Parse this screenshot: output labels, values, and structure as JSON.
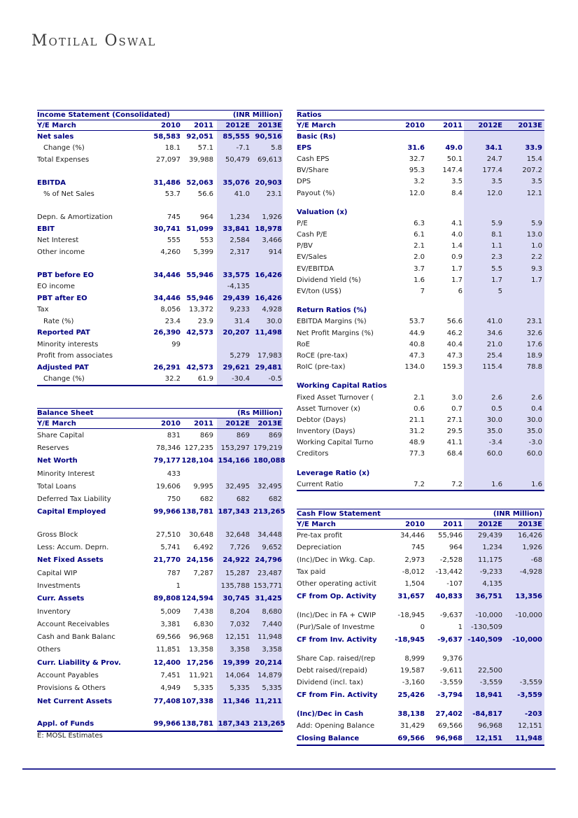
{
  "page": {
    "brand": "Motilal Oswal",
    "footnote": "E: MOSL Estimates"
  },
  "theme": {
    "navy": "#000080",
    "column_shade": "#dcdcf5",
    "footer_rule": "#2b2b96",
    "text": "#1a1a1a"
  },
  "tables": {
    "income": {
      "title": "Income Statement (Consolidated)",
      "unit": "(INR Million)",
      "header": [
        "Y/E March",
        "2010",
        "2011",
        "2012E",
        "2013E"
      ],
      "rows": [
        {
          "label": "Net sales",
          "values": [
            "58,583",
            "92,051",
            "85,555",
            "90,516"
          ],
          "style": "em"
        },
        {
          "label": "Change (%)",
          "values": [
            "18.1",
            "57.1",
            "-7.1",
            "5.8"
          ],
          "indent": true
        },
        {
          "label": "Total Expenses",
          "values": [
            "27,097",
            "39,988",
            "50,479",
            "69,613"
          ]
        },
        {
          "label": "",
          "values": [
            "",
            "",
            "",
            ""
          ],
          "blank": true
        },
        {
          "label": "EBITDA",
          "values": [
            "31,486",
            "52,063",
            "35,076",
            "20,903"
          ],
          "style": "em"
        },
        {
          "label": "% of Net Sales",
          "values": [
            "53.7",
            "56.6",
            "41.0",
            "23.1"
          ],
          "indent": true
        },
        {
          "label": "",
          "values": [
            "",
            "",
            "",
            ""
          ],
          "blank": true
        },
        {
          "label": "Depn. & Amortization",
          "values": [
            "745",
            "964",
            "1,234",
            "1,926"
          ]
        },
        {
          "label": "EBIT",
          "values": [
            "30,741",
            "51,099",
            "33,841",
            "18,978"
          ],
          "style": "em"
        },
        {
          "label": "Net Interest",
          "values": [
            "555",
            "553",
            "2,584",
            "3,466"
          ]
        },
        {
          "label": "Other income",
          "values": [
            "4,260",
            "5,399",
            "2,317",
            "914"
          ]
        },
        {
          "label": "",
          "values": [
            "",
            "",
            "",
            ""
          ],
          "blank": true
        },
        {
          "label": "PBT before EO",
          "values": [
            "34,446",
            "55,946",
            "33,575",
            "16,426"
          ],
          "style": "em"
        },
        {
          "label": "EO income",
          "values": [
            "",
            "",
            "-4,135",
            ""
          ]
        },
        {
          "label": "PBT after EO",
          "values": [
            "34,446",
            "55,946",
            "29,439",
            "16,426"
          ],
          "style": "em"
        },
        {
          "label": "Tax",
          "values": [
            "8,056",
            "13,372",
            "9,233",
            "4,928"
          ]
        },
        {
          "label": "Rate (%)",
          "values": [
            "23.4",
            "23.9",
            "31.4",
            "30.0"
          ],
          "indent": true
        },
        {
          "label": "Reported PAT",
          "values": [
            "26,390",
            "42,573",
            "20,207",
            "11,498"
          ],
          "style": "em"
        },
        {
          "label": "Minority interests",
          "values": [
            "99",
            "",
            "",
            ""
          ]
        },
        {
          "label": "Profit from associates",
          "values": [
            "",
            "",
            "5,279",
            "17,983"
          ]
        },
        {
          "label": "Adjusted PAT",
          "values": [
            "26,291",
            "42,573",
            "29,621",
            "29,481"
          ],
          "style": "em"
        },
        {
          "label": "Change (%)",
          "values": [
            "32.2",
            "61.9",
            "-30.4",
            "-0.5"
          ],
          "indent": true
        }
      ]
    },
    "balance": {
      "title": "Balance Sheet",
      "unit": "(Rs Million)",
      "header": [
        "Y/E March",
        "2010",
        "2011",
        "2012E",
        "2013E"
      ],
      "rows": [
        {
          "label": "Share Capital",
          "values": [
            "831",
            "869",
            "869",
            "869"
          ]
        },
        {
          "label": "Reserves",
          "values": [
            "78,346",
            "127,235",
            "153,297",
            "179,219"
          ]
        },
        {
          "label": "Net Worth",
          "values": [
            "79,177",
            "128,104",
            "154,166",
            "180,088"
          ],
          "style": "em"
        },
        {
          "label": "Minority Interest",
          "values": [
            "433",
            "",
            "",
            ""
          ]
        },
        {
          "label": "Total Loans",
          "values": [
            "19,606",
            "9,995",
            "32,495",
            "32,495"
          ]
        },
        {
          "label": "Deferred Tax Liability",
          "values": [
            "750",
            "682",
            "682",
            "682"
          ]
        },
        {
          "label": "Capital Employed",
          "values": [
            "99,966",
            "138,781",
            "187,343",
            "213,265"
          ],
          "style": "em"
        },
        {
          "label": "",
          "values": [
            "",
            "",
            "",
            ""
          ],
          "blank": true
        },
        {
          "label": "Gross Block",
          "values": [
            "27,510",
            "30,648",
            "32,648",
            "34,448"
          ]
        },
        {
          "label": "Less: Accum. Deprn.",
          "values": [
            "5,741",
            "6,492",
            "7,726",
            "9,652"
          ]
        },
        {
          "label": "Net Fixed Assets",
          "values": [
            "21,770",
            "24,156",
            "24,922",
            "24,796"
          ],
          "style": "em"
        },
        {
          "label": "Capital WIP",
          "values": [
            "787",
            "7,287",
            "15,287",
            "23,487"
          ]
        },
        {
          "label": "Investments",
          "values": [
            "1",
            "",
            "135,788",
            "153,771"
          ]
        },
        {
          "label": "Curr. Assets",
          "values": [
            "89,808",
            "124,594",
            "30,745",
            "31,425"
          ],
          "style": "em"
        },
        {
          "label": "Inventory",
          "values": [
            "5,009",
            "7,438",
            "8,204",
            "8,680"
          ]
        },
        {
          "label": "Account Receivables",
          "values": [
            "3,381",
            "6,830",
            "7,032",
            "7,440"
          ]
        },
        {
          "label": "Cash and Bank Balanc",
          "values": [
            "69,566",
            "96,968",
            "12,151",
            "11,948"
          ]
        },
        {
          "label": "Others",
          "values": [
            "11,851",
            "13,358",
            "3,358",
            "3,358"
          ]
        },
        {
          "label": "Curr. Liability & Prov.",
          "values": [
            "12,400",
            "17,256",
            "19,399",
            "20,214"
          ],
          "style": "em"
        },
        {
          "label": "Account Payables",
          "values": [
            "7,451",
            "11,921",
            "14,064",
            "14,879"
          ]
        },
        {
          "label": "Provisions & Others",
          "values": [
            "4,949",
            "5,335",
            "5,335",
            "5,335"
          ]
        },
        {
          "label": "Net Current Assets",
          "values": [
            "77,408",
            "107,338",
            "11,346",
            "11,211"
          ],
          "style": "em"
        },
        {
          "label": "",
          "values": [
            "",
            "",
            "",
            ""
          ],
          "blank": true
        },
        {
          "label": "Appl. of Funds",
          "values": [
            "99,966",
            "138,781",
            "187,343",
            "213,265"
          ],
          "style": "em"
        }
      ]
    },
    "ratios": {
      "title": "Ratios",
      "unit": "",
      "header": [
        "Y/E March",
        "2010",
        "2011",
        "2012E",
        "2013E"
      ],
      "rows": [
        {
          "label": "Basic (Rs)",
          "values": [
            "",
            "",
            "",
            ""
          ],
          "style": "section"
        },
        {
          "label": "EPS",
          "values": [
            "31.6",
            "49.0",
            "34.1",
            "33.9"
          ],
          "style": "em"
        },
        {
          "label": "Cash EPS",
          "values": [
            "32.7",
            "50.1",
            "24.7",
            "15.4"
          ]
        },
        {
          "label": "BV/Share",
          "values": [
            "95.3",
            "147.4",
            "177.4",
            "207.2"
          ]
        },
        {
          "label": "DPS",
          "values": [
            "3.2",
            "3.5",
            "3.5",
            "3.5"
          ]
        },
        {
          "label": "Payout (%)",
          "values": [
            "12.0",
            "8.4",
            "12.0",
            "12.1"
          ]
        },
        {
          "label": "",
          "values": [
            "",
            "",
            "",
            ""
          ],
          "blank": true
        },
        {
          "label": "Valuation (x)",
          "values": [
            "",
            "",
            "",
            ""
          ],
          "style": "section"
        },
        {
          "label": "P/E",
          "values": [
            "6.3",
            "4.1",
            "5.9",
            "5.9"
          ]
        },
        {
          "label": "Cash P/E",
          "values": [
            "6.1",
            "4.0",
            "8.1",
            "13.0"
          ]
        },
        {
          "label": "P/BV",
          "values": [
            "2.1",
            "1.4",
            "1.1",
            "1.0"
          ]
        },
        {
          "label": "EV/Sales",
          "values": [
            "2.0",
            "0.9",
            "2.3",
            "2.2"
          ]
        },
        {
          "label": "EV/EBITDA",
          "values": [
            "3.7",
            "1.7",
            "5.5",
            "9.3"
          ]
        },
        {
          "label": "Dividend Yield (%)",
          "values": [
            "1.6",
            "1.7",
            "1.7",
            "1.7"
          ]
        },
        {
          "label": "EV/ton (US$)",
          "values": [
            "7",
            "6",
            "5",
            ""
          ]
        },
        {
          "label": "",
          "values": [
            "",
            "",
            "",
            ""
          ],
          "blank": true
        },
        {
          "label": "Return Ratios (%)",
          "values": [
            "",
            "",
            "",
            ""
          ],
          "style": "section"
        },
        {
          "label": "EBITDA Margins (%)",
          "values": [
            "53.7",
            "56.6",
            "41.0",
            "23.1"
          ]
        },
        {
          "label": "Net Profit Margins (%)",
          "values": [
            "44.9",
            "46.2",
            "34.6",
            "32.6"
          ]
        },
        {
          "label": "RoE",
          "values": [
            "40.8",
            "40.4",
            "21.0",
            "17.6"
          ]
        },
        {
          "label": "RoCE (pre-tax)",
          "values": [
            "47.3",
            "47.3",
            "25.4",
            "18.9"
          ]
        },
        {
          "label": "RoIC (pre-tax)",
          "values": [
            "134.0",
            "159.3",
            "115.4",
            "78.8"
          ]
        },
        {
          "label": "",
          "values": [
            "",
            "",
            "",
            ""
          ],
          "blank": true
        },
        {
          "label": "Working Capital Ratios",
          "values": [
            "",
            "",
            "",
            ""
          ],
          "style": "section"
        },
        {
          "label": "Fixed Asset Turnover (",
          "values": [
            "2.1",
            "3.0",
            "2.6",
            "2.6"
          ]
        },
        {
          "label": "Asset Turnover (x)",
          "values": [
            "0.6",
            "0.7",
            "0.5",
            "0.4"
          ]
        },
        {
          "label": "Debtor (Days)",
          "values": [
            "21.1",
            "27.1",
            "30.0",
            "30.0"
          ]
        },
        {
          "label": "Inventory (Days)",
          "values": [
            "31.2",
            "29.5",
            "35.0",
            "35.0"
          ]
        },
        {
          "label": "Working Capital Turno",
          "values": [
            "48.9",
            "41.1",
            "-3.4",
            "-3.0"
          ]
        },
        {
          "label": "Creditors",
          "values": [
            "77.3",
            "68.4",
            "60.0",
            "60.0"
          ]
        },
        {
          "label": "",
          "values": [
            "",
            "",
            "",
            ""
          ],
          "blank": true
        },
        {
          "label": "Leverage Ratio (x)",
          "values": [
            "",
            "",
            "",
            ""
          ],
          "style": "section"
        },
        {
          "label": "Current Ratio",
          "values": [
            "7.2",
            "7.2",
            "1.6",
            "1.6"
          ]
        }
      ]
    },
    "cashflow": {
      "title": "Cash Flow Statement",
      "unit": "(INR Million)",
      "header": [
        "Y/E March",
        "2010",
        "2011",
        "2012E",
        "2013E"
      ],
      "rows": [
        {
          "label": "Pre-tax profit",
          "values": [
            "34,446",
            "55,946",
            "29,439",
            "16,426"
          ]
        },
        {
          "label": "Depreciation",
          "values": [
            "745",
            "964",
            "1,234",
            "1,926"
          ]
        },
        {
          "label": "(Inc)/Dec in Wkg. Cap.",
          "values": [
            "2,973",
            "-2,528",
            "11,175",
            "-68"
          ]
        },
        {
          "label": "Tax paid",
          "values": [
            "-8,012",
            "-13,442",
            "-9,233",
            "-4,928"
          ]
        },
        {
          "label": "Other operating activit",
          "values": [
            "1,504",
            "-107",
            "4,135",
            ""
          ]
        },
        {
          "label": "CF from Op. Activity",
          "values": [
            "31,657",
            "40,833",
            "36,751",
            "13,356"
          ],
          "style": "em"
        },
        {
          "label": "",
          "values": [
            "",
            "",
            "",
            ""
          ],
          "blank": true
        },
        {
          "label": "(Inc)/Dec in FA + CWIP",
          "values": [
            "-18,945",
            "-9,637",
            "-10,000",
            "-10,000"
          ]
        },
        {
          "label": "(Pur)/Sale of Investme",
          "values": [
            "0",
            "1",
            "-130,509",
            ""
          ]
        },
        {
          "label": "CF from Inv. Activity",
          "values": [
            "-18,945",
            "-9,637",
            "-140,509",
            "-10,000"
          ],
          "style": "em"
        },
        {
          "label": "",
          "values": [
            "",
            "",
            "",
            ""
          ],
          "blank": true
        },
        {
          "label": "Share Cap. raised/(rep",
          "values": [
            "8,999",
            "9,376",
            "",
            ""
          ]
        },
        {
          "label": "Debt raised/(repaid)",
          "values": [
            "19,587",
            "-9,611",
            "22,500",
            ""
          ]
        },
        {
          "label": "Dividend (incl. tax)",
          "values": [
            "-3,160",
            "-3,559",
            "-3,559",
            "-3,559"
          ]
        },
        {
          "label": "CF from Fin. Activity",
          "values": [
            "25,426",
            "-3,794",
            "18,941",
            "-3,559"
          ],
          "style": "em"
        },
        {
          "label": "",
          "values": [
            "",
            "",
            "",
            ""
          ],
          "blank": true
        },
        {
          "label": "(Inc)/Dec in Cash",
          "values": [
            "38,138",
            "27,402",
            "-84,817",
            "-203"
          ],
          "style": "em"
        },
        {
          "label": "Add: Opening Balance",
          "values": [
            "31,429",
            "69,566",
            "96,968",
            "12,151"
          ]
        },
        {
          "label": "Closing Balance",
          "values": [
            "69,566",
            "96,968",
            "12,151",
            "11,948"
          ],
          "style": "em"
        }
      ]
    }
  }
}
